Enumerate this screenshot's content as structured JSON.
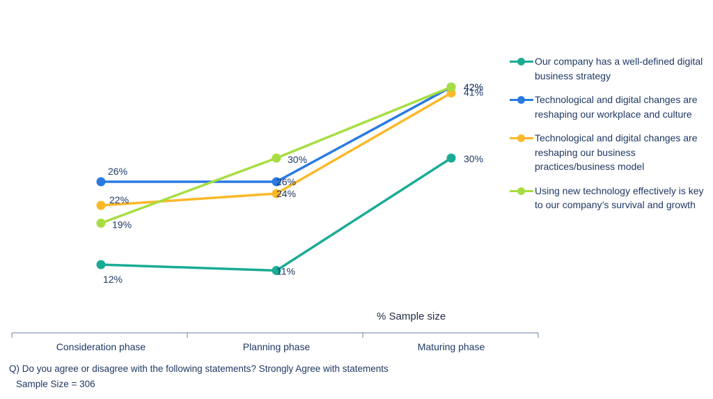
{
  "chart_data": {
    "type": "line",
    "categories": [
      "Consideration phase",
      "Planning phase",
      "Maturing phase"
    ],
    "series": [
      {
        "name": "Our company has a well-defined digital business strategy",
        "color": "#1aab95",
        "values": [
          12,
          11,
          30
        ],
        "labels": [
          "12%",
          "11%",
          "30%"
        ]
      },
      {
        "name": "Technological and digital changes are reshaping our workplace and culture",
        "color": "#2a7ae2",
        "values": [
          26,
          26,
          42
        ],
        "labels": [
          "26%",
          "26%",
          "42%"
        ]
      },
      {
        "name": "Technological and digital changes are reshaping our business practices/business model",
        "color": "#fbb829",
        "values": [
          22,
          24,
          41
        ],
        "labels": [
          "22%",
          "24%",
          "41%"
        ]
      },
      {
        "name": "Using new technology effectively is key to our company’s survival and growth",
        "color": "#a6dd42",
        "values": [
          19,
          30,
          42
        ],
        "labels": [
          "19%",
          "30%",
          "42%"
        ]
      }
    ],
    "ylim": [
      5,
      45
    ],
    "legend_position": "right",
    "grid": false
  },
  "axis_note": "% Sample size",
  "footnote": {
    "question": "Q) Do you agree or disagree with the following statements? Strongly Agree with statements",
    "sample": "Sample Size = 306"
  }
}
